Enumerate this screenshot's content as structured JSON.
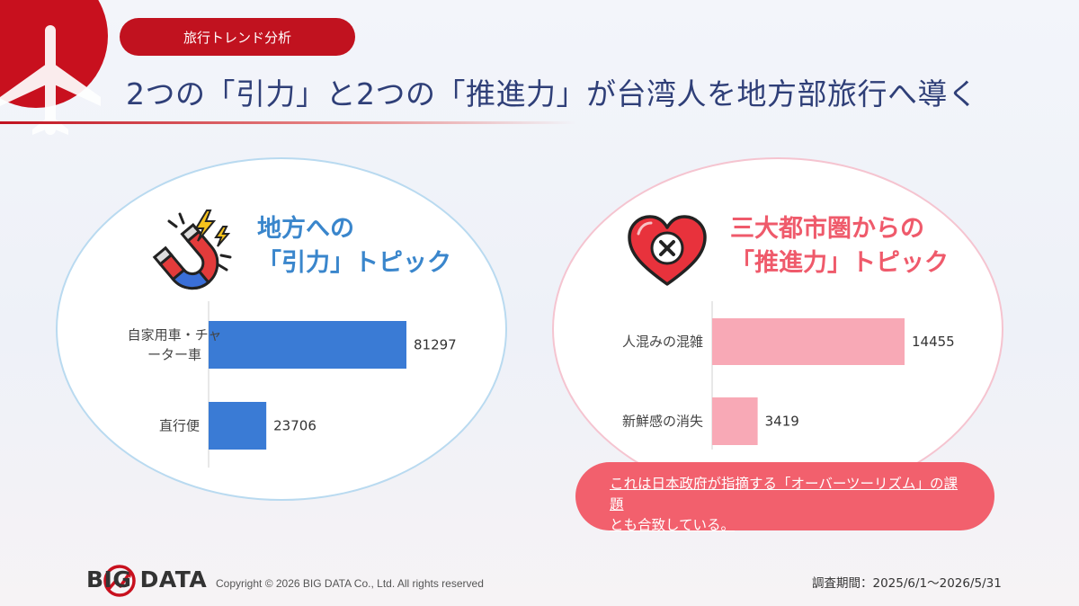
{
  "header": {
    "tag": "旅行トレンド分析",
    "title": "2つの「引力」と2つの「推進力」が台湾人を地方部旅行へ導く"
  },
  "panels": {
    "left": {
      "title_line1": "地方への",
      "title_line2": "「引力」トピック",
      "icon": "magnet-icon"
    },
    "right": {
      "title_line1": "三大都市圏からの",
      "title_line2": "「推進力」トピック",
      "icon": "heart-x-icon"
    }
  },
  "chart_data": [
    {
      "type": "bar",
      "orientation": "horizontal",
      "categories": [
        "自家用車・チャーター車",
        "直行便"
      ],
      "values": [
        81297,
        23706
      ],
      "color": "#3a7bd5",
      "title": "",
      "xlabel": "",
      "ylabel": ""
    },
    {
      "type": "bar",
      "orientation": "horizontal",
      "categories": [
        "人混みの混雑",
        "新鮮感の消失"
      ],
      "values": [
        14455,
        3419
      ],
      "color": "#f8a9b6",
      "title": "",
      "xlabel": "",
      "ylabel": ""
    }
  ],
  "note": {
    "line1": "これは日本政府が指摘する「オーバーツーリズム」の課題",
    "line2": "とも合致している。"
  },
  "footer": {
    "brand": "BIG DATA",
    "copyright": "Copyright © 2026 BIG DATA Co., Ltd. All rights reserved",
    "period": "調査期間：2025/6/1～2026/5/31"
  },
  "colors": {
    "accent_red": "#c1121f",
    "title_blue": "#2f3f78",
    "left_accent": "#3a86cc",
    "right_accent": "#ef5a6b"
  }
}
